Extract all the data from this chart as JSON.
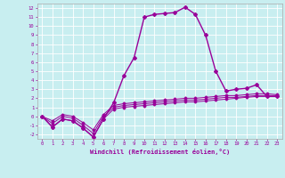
{
  "bg_color": "#c8eef0",
  "grid_color": "#ffffff",
  "line_color": "#990099",
  "xlabel": "Windchill (Refroidissement éolien,°C)",
  "x_hours": [
    0,
    1,
    2,
    3,
    4,
    5,
    6,
    7,
    8,
    9,
    10,
    11,
    12,
    13,
    14,
    15,
    16,
    17,
    18,
    19,
    20,
    21,
    22,
    23
  ],
  "ylim": [
    -2.5,
    12.5
  ],
  "xlim": [
    -0.5,
    23.5
  ],
  "yticks": [
    -2,
    -1,
    0,
    1,
    2,
    3,
    4,
    5,
    6,
    7,
    8,
    9,
    10,
    11,
    12
  ],
  "windchill_line": [
    0.0,
    -1.2,
    -0.3,
    -0.5,
    -1.3,
    -2.3,
    -0.3,
    1.5,
    4.5,
    6.5,
    11.0,
    11.3,
    11.4,
    11.5,
    12.1,
    11.3,
    9.0,
    5.0,
    2.8,
    3.0,
    3.1,
    3.5,
    2.2,
    2.2
  ],
  "flat_line1": [
    0.0,
    -1.2,
    -0.3,
    -0.5,
    -1.3,
    -2.3,
    -0.3,
    0.8,
    1.0,
    1.1,
    1.2,
    1.3,
    1.4,
    1.5,
    1.6,
    1.6,
    1.7,
    1.8,
    1.9,
    2.0,
    2.1,
    2.2,
    2.2,
    2.2
  ],
  "flat_line2": [
    0.0,
    -0.8,
    0.0,
    -0.2,
    -1.0,
    -1.9,
    0.0,
    1.0,
    1.2,
    1.3,
    1.4,
    1.5,
    1.6,
    1.7,
    1.8,
    1.8,
    1.9,
    2.0,
    2.1,
    2.1,
    2.2,
    2.3,
    2.3,
    2.3
  ],
  "flat_line3": [
    0.0,
    -0.5,
    0.2,
    0.0,
    -0.7,
    -1.5,
    0.2,
    1.2,
    1.4,
    1.5,
    1.6,
    1.7,
    1.8,
    1.9,
    2.0,
    2.0,
    2.1,
    2.2,
    2.3,
    2.3,
    2.4,
    2.5,
    2.5,
    2.4
  ]
}
